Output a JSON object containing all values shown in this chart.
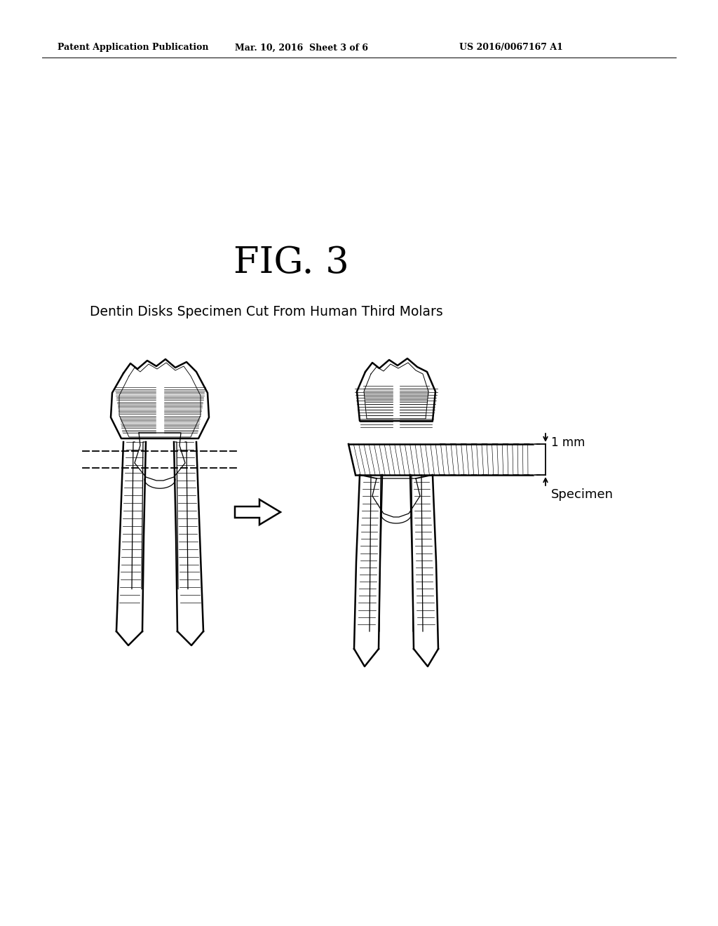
{
  "background_color": "#ffffff",
  "header_left": "Patent Application Publication",
  "header_mid": "Mar. 10, 2016  Sheet 3 of 6",
  "header_right": "US 2016/0067167 A1",
  "fig_title": "FIG. 3",
  "subtitle": "Dentin Disks Specimen Cut From Human Third Molars",
  "annotation_1mm": "1 mm",
  "annotation_specimen": "Specimen",
  "fig_width": 10.24,
  "fig_height": 13.2
}
